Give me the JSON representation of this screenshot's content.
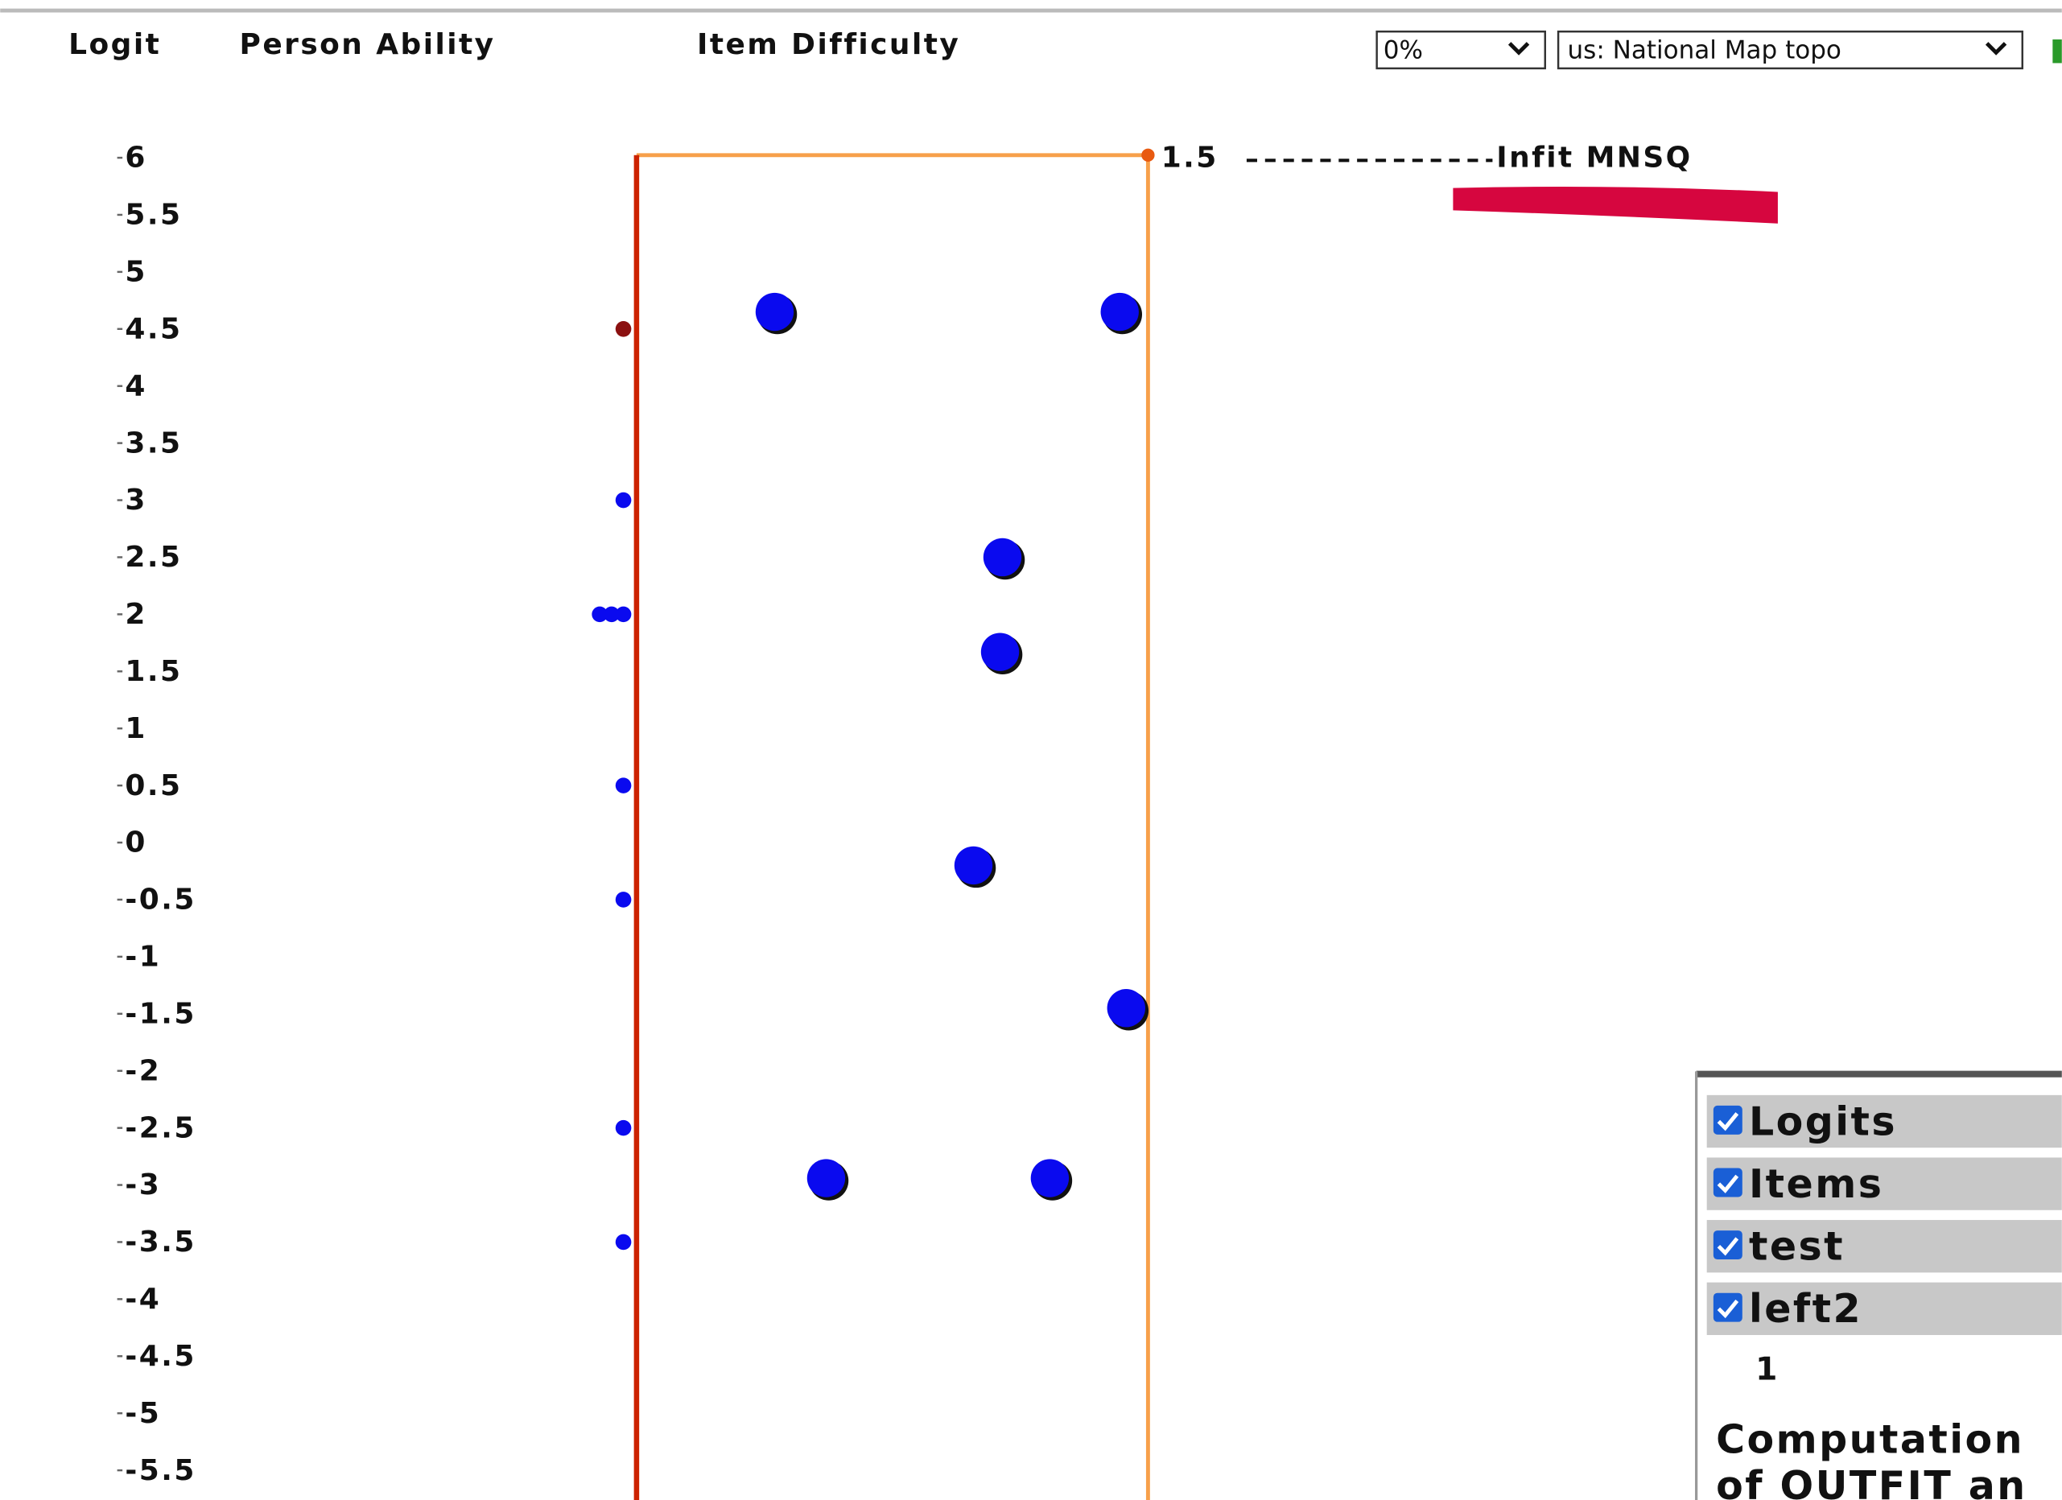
{
  "header": {
    "columns": [
      "Logit",
      "Person Ability",
      "Item Difficulty"
    ]
  },
  "controls": {
    "opacity": "0%",
    "basemap": "us: National Map topo"
  },
  "chart_data": {
    "type": "scatter",
    "xlabel": "Infit MNSQ",
    "xlim": [
      0,
      1.5
    ],
    "xticks": [
      1.5
    ],
    "ylim": [
      -5.76,
      6
    ],
    "yticks": [
      6,
      5.5,
      5,
      4.5,
      4,
      3.5,
      3,
      2.5,
      2,
      1.5,
      1,
      0.5,
      0,
      -0.5,
      -1,
      -1.5,
      -2,
      -2.5,
      -3,
      -3.5,
      -4,
      -4.5,
      -5,
      -5.5
    ],
    "items": {
      "color": "#0a0aef",
      "x": [
        0.405,
        1.417,
        1.073,
        1.066,
        0.988,
        1.436,
        0.556,
        1.212
      ],
      "values": [
        4.65,
        4.65,
        2.5,
        1.67,
        -0.2,
        -1.45,
        -2.94,
        -2.94
      ]
    },
    "persons": {
      "colors": [
        "#8b1010",
        "#0a0aef",
        "#0a0aef",
        "#0a0aef",
        "#0a0aef",
        "#0a0aef",
        "#0a0aef",
        "#0a0aef",
        "#0a0aef"
      ],
      "values": [
        4.5,
        3,
        2,
        2,
        2,
        0.5,
        -0.5,
        -2.5,
        -3.5
      ]
    }
  },
  "layers": {
    "names": [
      "Logits",
      "Items",
      "test",
      "left2"
    ],
    "count": "1",
    "description": [
      "Computation",
      "of OUTFIT an"
    ]
  }
}
